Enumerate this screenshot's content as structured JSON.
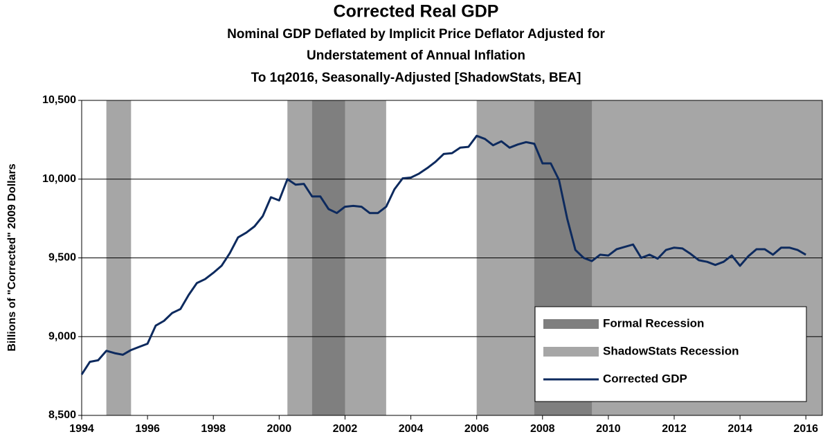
{
  "chart_data": {
    "type": "line",
    "title": "Corrected Real GDP",
    "subtitle": [
      "Nominal GDP Deflated by Implicit Price Deflator Adjusted for",
      "Understatement of Annual Inflation",
      "To 1q2016, Seasonally-Adjusted [ShadowStats, BEA]"
    ],
    "y_label": "Billions  of \"Corrected\" 2009 Dollars",
    "x": [
      1994,
      1994.25,
      1994.5,
      1994.75,
      1995,
      1995.25,
      1995.5,
      1995.75,
      1996,
      1996.25,
      1996.5,
      1996.75,
      1997,
      1997.25,
      1997.5,
      1997.75,
      1998,
      1998.25,
      1998.5,
      1998.75,
      1999,
      1999.25,
      1999.5,
      1999.75,
      2000,
      2000.25,
      2000.5,
      2000.75,
      2001,
      2001.25,
      2001.5,
      2001.75,
      2002,
      2002.25,
      2002.5,
      2002.75,
      2003,
      2003.25,
      2003.5,
      2003.75,
      2004,
      2004.25,
      2004.5,
      2004.75,
      2005,
      2005.25,
      2005.5,
      2005.75,
      2006,
      2006.25,
      2006.5,
      2006.75,
      2007,
      2007.25,
      2007.5,
      2007.75,
      2008,
      2008.25,
      2008.5,
      2008.75,
      2009,
      2009.25,
      2009.5,
      2009.75,
      2010,
      2010.25,
      2010.5,
      2010.75,
      2011,
      2011.25,
      2011.5,
      2011.75,
      2012,
      2012.25,
      2012.5,
      2012.75,
      2013,
      2013.25,
      2013.5,
      2013.75,
      2014,
      2014.25,
      2014.5,
      2014.75,
      2015,
      2015.25,
      2015.5,
      2015.75,
      2016
    ],
    "series": [
      {
        "name": "Corrected GDP",
        "color": "#0d2a5e",
        "values": [
          8760,
          8840,
          8850,
          8910,
          8895,
          8885,
          8915,
          8935,
          8955,
          9070,
          9100,
          9150,
          9175,
          9265,
          9340,
          9365,
          9405,
          9450,
          9530,
          9630,
          9660,
          9700,
          9765,
          9885,
          9865,
          10000,
          9965,
          9970,
          9890,
          9890,
          9810,
          9785,
          9825,
          9830,
          9825,
          9785,
          9785,
          9825,
          9935,
          10005,
          10010,
          10035,
          10070,
          10110,
          10160,
          10165,
          10200,
          10205,
          10275,
          10255,
          10215,
          10240,
          10200,
          10220,
          10235,
          10225,
          10100,
          10100,
          9995,
          9750,
          9550,
          9500,
          9480,
          9520,
          9515,
          9555,
          9570,
          9585,
          9500,
          9520,
          9495,
          9550,
          9565,
          9560,
          9525,
          9485,
          9475,
          9455,
          9475,
          9515,
          9450,
          9510,
          9555,
          9555,
          9520,
          9565,
          9565,
          9550,
          9520
        ]
      }
    ],
    "recessions": [
      {
        "name": "Formal Recession",
        "color": "#7f7f7f",
        "periods": [
          [
            2001,
            2002
          ],
          [
            2007.75,
            2009.5
          ]
        ]
      },
      {
        "name": "ShadowStats Recession",
        "color": "#a6a6a6",
        "periods": [
          [
            1994.75,
            1995.5
          ],
          [
            2000.25,
            2003.25
          ],
          [
            2006,
            2016.5
          ]
        ]
      }
    ],
    "xlim": [
      1994,
      2016.5
    ],
    "xticks": [
      1994,
      1996,
      1998,
      2000,
      2002,
      2004,
      2006,
      2008,
      2010,
      2012,
      2014,
      2016
    ],
    "ylim": [
      8500,
      10500
    ],
    "yticks": [
      {
        "value": 8500,
        "label": "8,500"
      },
      {
        "value": 9000,
        "label": "9,000"
      },
      {
        "value": 9500,
        "label": "9,500"
      },
      {
        "value": 10000,
        "label": "10,000"
      },
      {
        "value": 10500,
        "label": "10,500"
      }
    ],
    "grid": true,
    "legend": "lower right"
  }
}
